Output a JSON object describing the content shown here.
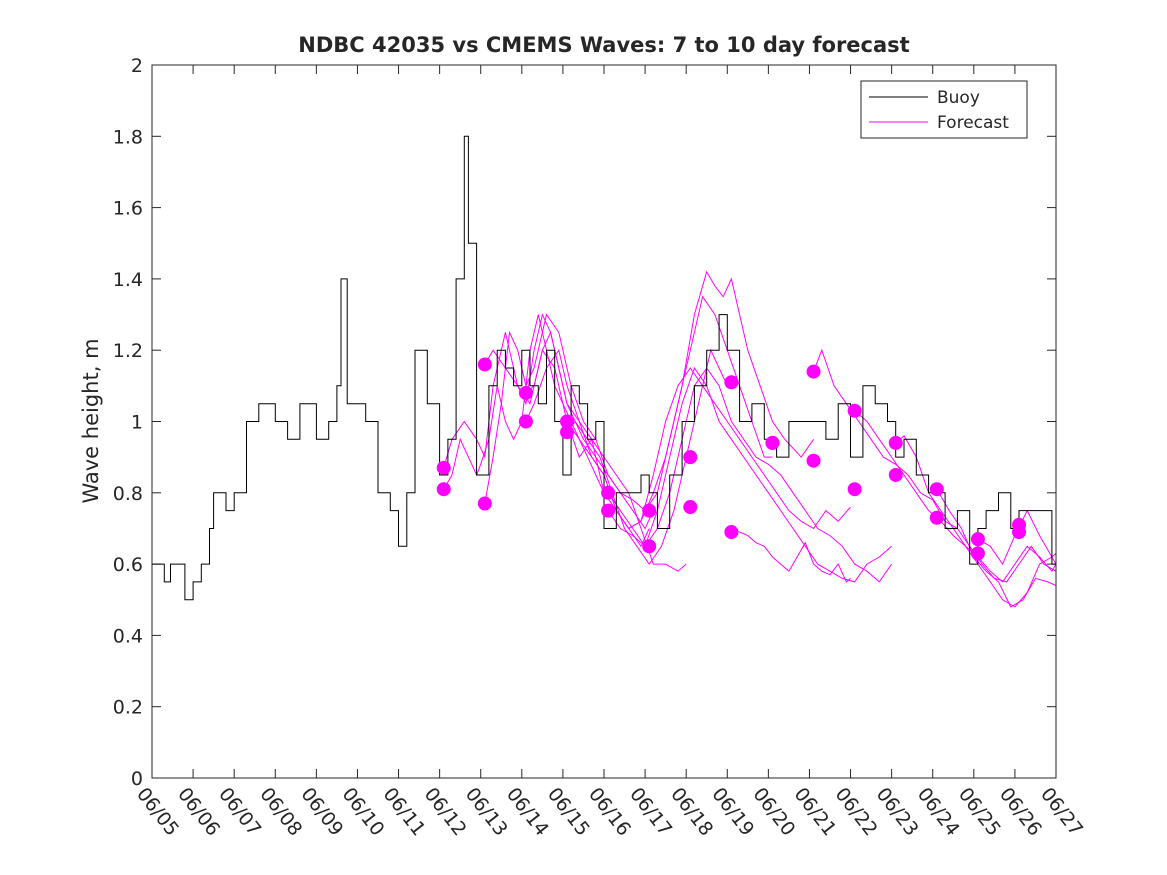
{
  "chart_data": {
    "type": "line",
    "title": "NDBC 42035 vs CMEMS Waves: 7 to 10 day forecast",
    "xlabel": "",
    "ylabel": "Wave height, m",
    "xlim": [
      "06/05",
      "06/27"
    ],
    "ylim": [
      0,
      2
    ],
    "x_ticks": [
      "06/05",
      "06/06",
      "06/07",
      "06/08",
      "06/09",
      "06/10",
      "06/11",
      "06/12",
      "06/13",
      "06/14",
      "06/15",
      "06/16",
      "06/17",
      "06/18",
      "06/19",
      "06/20",
      "06/21",
      "06/22",
      "06/23",
      "06/24",
      "06/25",
      "06/26",
      "06/27"
    ],
    "y_ticks": [
      "0",
      "0.2",
      "0.4",
      "0.6",
      "0.8",
      "1",
      "1.2",
      "1.4",
      "1.6",
      "1.8",
      "2"
    ],
    "grid": false,
    "legend": {
      "position": "top-right",
      "entries": [
        "Buoy",
        "Forecast"
      ]
    },
    "colors": {
      "buoy": "#000000",
      "forecast": "#ff00ff"
    },
    "x_unit": "day of June",
    "series": [
      {
        "name": "Buoy",
        "x": [
          5.0,
          5.3,
          5.45,
          5.6,
          5.8,
          6.0,
          6.2,
          6.4,
          6.5,
          6.8,
          7.0,
          7.3,
          7.6,
          8.0,
          8.3,
          8.6,
          9.0,
          9.3,
          9.5,
          9.6,
          9.75,
          10.0,
          10.2,
          10.5,
          10.8,
          11.0,
          11.2,
          11.4,
          11.7,
          12.0,
          12.2,
          12.4,
          12.6,
          12.7,
          12.9,
          13.0,
          13.2,
          13.4,
          13.6,
          13.8,
          14.0,
          14.2,
          14.4,
          14.6,
          14.8,
          15.0,
          15.2,
          15.4,
          15.6,
          15.8,
          16.0,
          16.3,
          16.6,
          16.9,
          17.1,
          17.3,
          17.6,
          17.9,
          18.2,
          18.5,
          18.8,
          19.0,
          19.3,
          19.6,
          19.9,
          20.2,
          20.5,
          20.8,
          21.1,
          21.4,
          21.7,
          22.0,
          22.3,
          22.6,
          22.9,
          23.1,
          23.3,
          23.6,
          23.9,
          24.1,
          24.3,
          24.6,
          24.9,
          25.1,
          25.3,
          25.6,
          25.9,
          26.1,
          26.3,
          26.6,
          26.9,
          27.0
        ],
        "values": [
          0.6,
          0.55,
          0.6,
          0.6,
          0.5,
          0.55,
          0.6,
          0.7,
          0.8,
          0.75,
          0.8,
          1.0,
          1.05,
          1.0,
          0.95,
          1.05,
          0.95,
          1.0,
          1.1,
          1.4,
          1.05,
          1.05,
          1.0,
          0.8,
          0.75,
          0.65,
          0.8,
          1.2,
          1.05,
          0.85,
          0.95,
          1.4,
          1.8,
          1.5,
          0.85,
          0.85,
          1.1,
          1.2,
          1.15,
          1.1,
          1.2,
          1.1,
          1.05,
          1.2,
          1.0,
          0.85,
          1.1,
          1.05,
          0.95,
          1.0,
          0.7,
          0.8,
          0.8,
          0.85,
          0.8,
          0.7,
          0.85,
          1.0,
          1.1,
          1.2,
          1.3,
          1.2,
          1.0,
          1.05,
          0.95,
          0.9,
          1.0,
          1.0,
          1.0,
          0.95,
          1.05,
          0.9,
          1.1,
          1.05,
          1.0,
          0.9,
          0.95,
          0.85,
          0.8,
          0.8,
          0.7,
          0.75,
          0.6,
          0.7,
          0.75,
          0.8,
          0.7,
          0.75,
          0.75,
          0.75,
          0.6,
          0.6
        ]
      },
      {
        "name": "Forecast",
        "runs": [
          {
            "x": [
              12.1,
              12.3,
              12.5,
              12.7,
              12.9,
              13.0,
              13.2,
              13.4,
              13.6,
              13.8,
              14.0,
              14.2,
              14.4,
              14.6,
              14.8,
              15.0,
              15.2,
              15.4,
              15.6,
              15.8,
              16.0
            ],
            "values": [
              0.81,
              0.85,
              0.95,
              0.9,
              0.85,
              0.88,
              0.95,
              1.1,
              1.0,
              0.95,
              1.0,
              1.2,
              1.3,
              1.2,
              1.1,
              1.05,
              1.0,
              0.95,
              0.9,
              0.85,
              0.8
            ]
          },
          {
            "x": [
              12.1,
              12.3,
              12.6,
              12.9,
              13.1,
              13.3,
              13.6,
              13.9,
              14.2,
              14.5,
              14.8,
              15.1,
              15.4,
              15.7,
              16.0,
              16.3,
              16.6,
              16.9,
              17.1
            ],
            "values": [
              0.87,
              0.95,
              1.0,
              0.95,
              0.9,
              1.1,
              1.25,
              1.1,
              1.05,
              1.2,
              1.15,
              1.0,
              0.9,
              0.95,
              0.8,
              0.75,
              0.7,
              0.65,
              0.7
            ]
          },
          {
            "x": [
              13.1,
              13.3,
              13.5,
              13.7,
              13.9,
              14.1,
              14.3,
              14.6,
              14.9,
              15.2,
              15.5,
              15.8,
              16.1,
              16.4,
              16.7,
              17.0,
              17.2
            ],
            "values": [
              0.77,
              0.9,
              1.05,
              1.25,
              1.2,
              1.1,
              1.15,
              1.3,
              1.25,
              1.1,
              1.0,
              0.95,
              0.85,
              0.8,
              0.75,
              0.7,
              0.75
            ]
          },
          {
            "x": [
              13.1,
              13.3,
              13.6,
              13.9,
              14.1,
              14.3,
              14.5,
              14.7,
              14.9,
              15.1,
              15.4,
              15.7,
              16.0,
              16.3,
              16.6,
              16.9,
              17.2,
              17.5,
              17.8,
              18.0
            ],
            "values": [
              1.16,
              1.2,
              1.15,
              1.1,
              1.05,
              1.2,
              1.3,
              1.25,
              1.15,
              1.05,
              1.0,
              0.95,
              0.9,
              0.85,
              0.8,
              0.7,
              0.6,
              0.6,
              0.58,
              0.6
            ]
          },
          {
            "x": [
              14.1,
              14.3,
              14.5,
              14.7,
              14.9,
              15.1,
              15.3,
              15.6,
              15.9,
              16.2,
              16.5,
              16.8,
              17.1,
              17.4,
              17.7,
              18.0,
              18.2,
              18.4,
              18.6,
              18.8,
              19.0
            ],
            "values": [
              1.08,
              1.1,
              1.2,
              1.25,
              1.15,
              1.05,
              1.0,
              0.95,
              0.9,
              0.8,
              0.7,
              0.65,
              0.6,
              0.65,
              0.75,
              0.9,
              1.0,
              1.1,
              1.2,
              1.15,
              1.1
            ]
          },
          {
            "x": [
              14.1,
              14.3,
              14.6,
              14.9,
              15.1,
              15.4,
              15.7,
              16.0,
              16.3,
              16.6,
              16.9,
              17.2,
              17.5,
              17.8,
              18.1,
              18.4,
              18.7,
              19.0,
              19.3,
              19.6,
              19.9,
              20.1
            ],
            "values": [
              1.0,
              1.05,
              1.15,
              1.2,
              1.1,
              1.0,
              0.9,
              0.85,
              0.75,
              0.7,
              0.72,
              0.8,
              0.9,
              1.05,
              1.2,
              1.35,
              1.3,
              1.2,
              1.1,
              1.0,
              0.9,
              0.9
            ]
          },
          {
            "x": [
              15.1,
              15.3,
              15.5,
              15.8,
              16.1,
              16.4,
              16.7,
              17.0,
              17.3,
              17.6,
              17.9,
              18.2,
              18.5,
              18.7,
              18.9,
              19.1,
              19.3,
              19.5,
              19.8,
              20.1,
              20.4,
              20.8,
              21.1
            ],
            "values": [
              0.97,
              1.0,
              0.95,
              0.9,
              0.85,
              0.8,
              0.78,
              0.75,
              0.8,
              0.95,
              1.1,
              1.3,
              1.42,
              1.38,
              1.35,
              1.4,
              1.3,
              1.2,
              1.1,
              1.0,
              0.95,
              0.9,
              0.95
            ]
          },
          {
            "x": [
              15.1,
              15.4,
              15.7,
              16.0,
              16.3,
              16.6,
              16.9,
              17.2,
              17.5,
              17.8,
              18.1,
              18.4,
              18.7,
              19.0,
              19.3,
              19.6,
              19.9,
              20.2,
              20.5,
              20.8,
              21.1,
              21.4,
              21.7,
              22.0
            ],
            "values": [
              1.0,
              0.95,
              0.9,
              0.85,
              0.75,
              0.7,
              0.72,
              0.85,
              1.0,
              1.1,
              1.15,
              1.1,
              1.05,
              1.0,
              0.95,
              0.9,
              0.85,
              0.8,
              0.75,
              0.72,
              0.7,
              0.75,
              0.72,
              0.76
            ]
          },
          {
            "x": [
              16.1,
              16.4,
              16.7,
              17.0,
              17.3,
              17.6,
              17.9,
              18.2,
              18.5,
              18.8,
              19.1,
              19.4,
              19.7,
              20.0,
              20.3,
              20.6,
              20.9,
              21.2,
              21.5,
              21.8,
              22.1,
              22.4,
              22.7,
              23.0
            ],
            "values": [
              0.8,
              0.75,
              0.7,
              0.65,
              0.7,
              0.8,
              0.95,
              1.1,
              1.15,
              1.1,
              1.0,
              0.95,
              0.9,
              0.88,
              0.85,
              0.8,
              0.75,
              0.7,
              0.68,
              0.65,
              0.6,
              0.58,
              0.55,
              0.6
            ]
          },
          {
            "x": [
              16.1,
              16.4,
              16.7,
              17.0,
              17.3,
              17.6,
              17.9,
              18.2,
              18.5,
              18.8,
              19.1,
              19.4,
              19.7,
              20.0,
              20.3,
              20.6,
              20.9,
              21.2,
              21.5,
              21.8,
              22.1,
              22.4,
              22.7,
              23.0
            ],
            "values": [
              0.75,
              0.7,
              0.68,
              0.65,
              0.75,
              0.9,
              1.05,
              1.15,
              1.1,
              1.0,
              0.95,
              0.9,
              0.85,
              0.8,
              0.75,
              0.7,
              0.65,
              0.6,
              0.58,
              0.56,
              0.55,
              0.6,
              0.62,
              0.65
            ]
          },
          {
            "x": [
              19.1,
              19.3,
              19.5,
              19.7,
              19.9,
              20.1,
              20.3,
              20.5,
              20.7,
              20.9,
              21.1,
              21.3,
              21.5,
              21.7,
              21.9,
              22.0
            ],
            "values": [
              0.69,
              0.69,
              0.68,
              0.66,
              0.65,
              0.62,
              0.6,
              0.58,
              0.62,
              0.66,
              0.6,
              0.58,
              0.57,
              0.6,
              0.55,
              0.56
            ]
          },
          {
            "x": [
              21.1,
              21.3,
              21.6,
              21.9,
              22.2,
              22.5,
              22.8,
              23.1,
              23.4,
              23.7,
              24.0,
              24.3,
              24.6,
              24.9,
              25.2,
              25.5,
              25.8,
              26.1,
              26.4,
              26.7,
              27.0
            ],
            "values": [
              1.14,
              1.2,
              1.1,
              1.05,
              1.0,
              0.95,
              0.9,
              0.88,
              0.85,
              0.8,
              0.78,
              0.72,
              0.7,
              0.65,
              0.6,
              0.56,
              0.55,
              0.6,
              0.65,
              0.6,
              0.58
            ]
          },
          {
            "x": [
              22.1,
              22.4,
              22.7,
              23.0,
              23.3,
              23.6,
              23.9,
              24.2,
              24.5,
              24.8,
              25.1,
              25.4,
              25.7,
              26.0,
              26.3,
              26.6,
              26.9,
              27.0
            ],
            "values": [
              1.03,
              1.0,
              0.95,
              0.9,
              0.85,
              0.8,
              0.75,
              0.72,
              0.68,
              0.65,
              0.62,
              0.58,
              0.55,
              0.6,
              0.65,
              0.62,
              0.58,
              0.6
            ]
          },
          {
            "x": [
              23.1,
              23.3,
              23.6,
              23.9,
              24.2,
              24.5,
              24.8,
              25.1,
              25.4,
              25.7,
              26.0,
              26.3,
              26.6,
              26.9,
              27.0
            ],
            "values": [
              0.94,
              0.96,
              0.9,
              0.8,
              0.75,
              0.7,
              0.65,
              0.6,
              0.55,
              0.5,
              0.48,
              0.52,
              0.6,
              0.62,
              0.6
            ]
          },
          {
            "x": [
              24.1,
              24.4,
              24.7,
              25.0,
              25.3,
              25.6,
              25.9,
              26.2,
              26.5,
              26.8,
              27.0
            ],
            "values": [
              0.81,
              0.75,
              0.7,
              0.62,
              0.58,
              0.55,
              0.48,
              0.5,
              0.56,
              0.55,
              0.54
            ]
          },
          {
            "x": [
              25.1,
              25.4,
              25.7,
              26.0,
              26.3,
              26.6,
              26.9,
              27.0
            ],
            "values": [
              0.67,
              0.65,
              0.6,
              0.68,
              0.75,
              0.68,
              0.62,
              0.63
            ]
          }
        ],
        "start_points": {
          "x": [
            12.1,
            12.1,
            13.1,
            13.1,
            14.1,
            14.1,
            15.1,
            15.1,
            16.1,
            16.1,
            17.1,
            17.1,
            18.1,
            18.1,
            19.1,
            19.1,
            20.1,
            20.1,
            21.1,
            21.1,
            22.1,
            22.1,
            23.1,
            23.1,
            24.1,
            24.1,
            25.1,
            25.1,
            26.1,
            26.1
          ],
          "values": [
            0.87,
            0.81,
            1.16,
            0.77,
            1.08,
            1.0,
            1.0,
            0.97,
            0.8,
            0.75,
            0.75,
            0.65,
            0.9,
            0.76,
            1.11,
            0.69,
            0.94,
            0.94,
            1.14,
            0.89,
            1.03,
            0.81,
            0.94,
            0.85,
            0.81,
            0.73,
            0.67,
            0.63,
            0.71,
            0.69
          ]
        }
      }
    ]
  }
}
